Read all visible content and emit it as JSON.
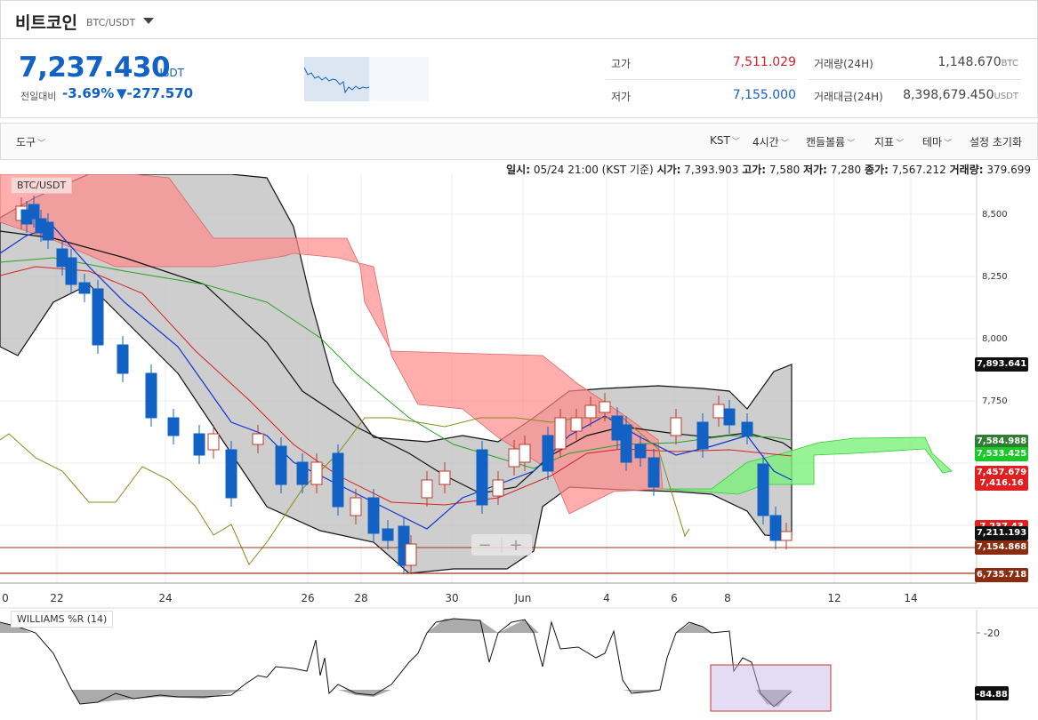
{
  "header": {
    "coin_name": "비트코인",
    "pair": "BTC/USDT",
    "dropdown_icon": "caret-down-icon"
  },
  "ticker": {
    "price": "7,237.430",
    "price_unit": "USDT",
    "change_label": "전일대비",
    "change_rate": "-3.69%",
    "change_amount": "▼-277.570",
    "high_label": "고가",
    "high_value": "7,511.029",
    "low_label": "저가",
    "low_value": "7,155.000",
    "volume_label": "거래량(24H)",
    "volume_value": "1,148.670",
    "volume_unit": "BTC",
    "amount_label": "거래대금(24H)",
    "amount_value": "8,398,679.450",
    "amount_unit": "USDT",
    "colors": {
      "up": "#d3212d",
      "down": "#1261c4"
    }
  },
  "toolbar": {
    "tools": "도구",
    "timezone": "KST",
    "interval": "4시간",
    "candle_type": "캔들볼륨",
    "indicators": "지표",
    "theme": "테마",
    "reset": "설정 초기화"
  },
  "info_bar": {
    "date_label": "일시:",
    "date_value": "05/24 21:00 (KST 기준)",
    "open_label": "시가:",
    "open_value": "7,393.903",
    "high_label": "고가:",
    "high_value": "7,580",
    "low_label": "저가:",
    "low_value": "7,280",
    "close_label": "종가:",
    "close_value": "7,567.212",
    "volume_label": "거래량:",
    "volume_value": "379.699"
  },
  "main_legend": "BTC/USDT",
  "osc_legend": "WILLIAMS %R (14)",
  "y_axis": [
    "8,500",
    "8,250",
    "8,000",
    "7,750"
  ],
  "x_axis": [
    "0",
    "22",
    "24",
    "26",
    "28",
    "30",
    "Jun",
    "4",
    "6",
    "8",
    "12",
    "14"
  ],
  "price_tags": [
    {
      "text": "7,893.641",
      "color": "#111"
    },
    {
      "text": "7,584.988",
      "color": "#2e7d32"
    },
    {
      "text": "7,533.425",
      "color": "#18c928"
    },
    {
      "text": "7,457.679",
      "color": "#e02020"
    },
    {
      "text": "7,416.16",
      "color": "#e02020"
    },
    {
      "text": "7,237.43",
      "color": "#e02020"
    },
    {
      "text": "7,211.193",
      "color": "#111"
    },
    {
      "text": "7,154.868",
      "color": "#8b2b10"
    },
    {
      "text": "6,735.718",
      "color": "#8b2b10"
    }
  ],
  "osc_axis": [
    "-20"
  ],
  "osc_tag": "-84.88",
  "zoom": {
    "minus": "−",
    "plus": "+"
  }
}
